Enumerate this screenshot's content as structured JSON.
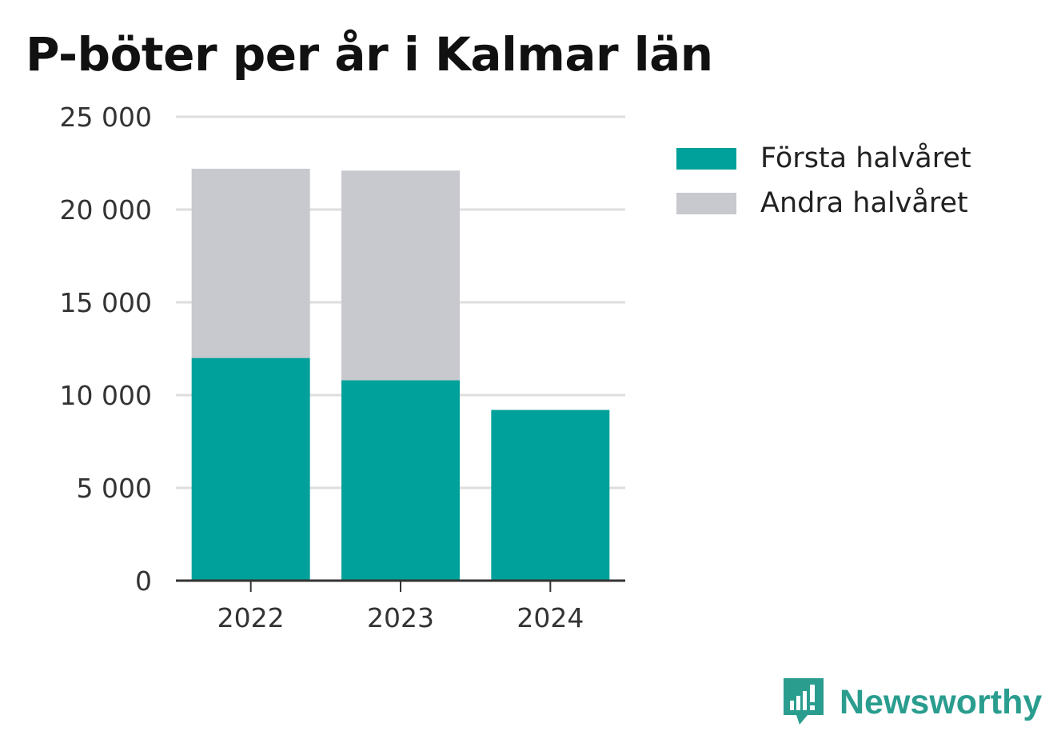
{
  "chart_data": {
    "type": "bar",
    "stacked": true,
    "title": "P-böter per år i Kalmar län",
    "xlabel": "",
    "ylabel": "",
    "categories": [
      "2022",
      "2023",
      "2024"
    ],
    "series": [
      {
        "name": "Första halvåret",
        "color": "#00a19a",
        "values": [
          12000,
          10800,
          9200
        ]
      },
      {
        "name": "Andra halvåret",
        "color": "#c8c8cf",
        "values": [
          10200,
          11300,
          0
        ]
      }
    ],
    "ylim": [
      0,
      25000
    ],
    "yticks": [
      0,
      5000,
      10000,
      15000,
      20000,
      25000
    ],
    "ytick_labels": [
      "0",
      "5 000",
      "10 000",
      "15 000",
      "20 000",
      "25 000"
    ],
    "grid": true,
    "legend_position": "right"
  },
  "branding": {
    "name": "Newsworthy",
    "icon": "newsworthy-logo-icon",
    "color": "#2a9d8f"
  }
}
